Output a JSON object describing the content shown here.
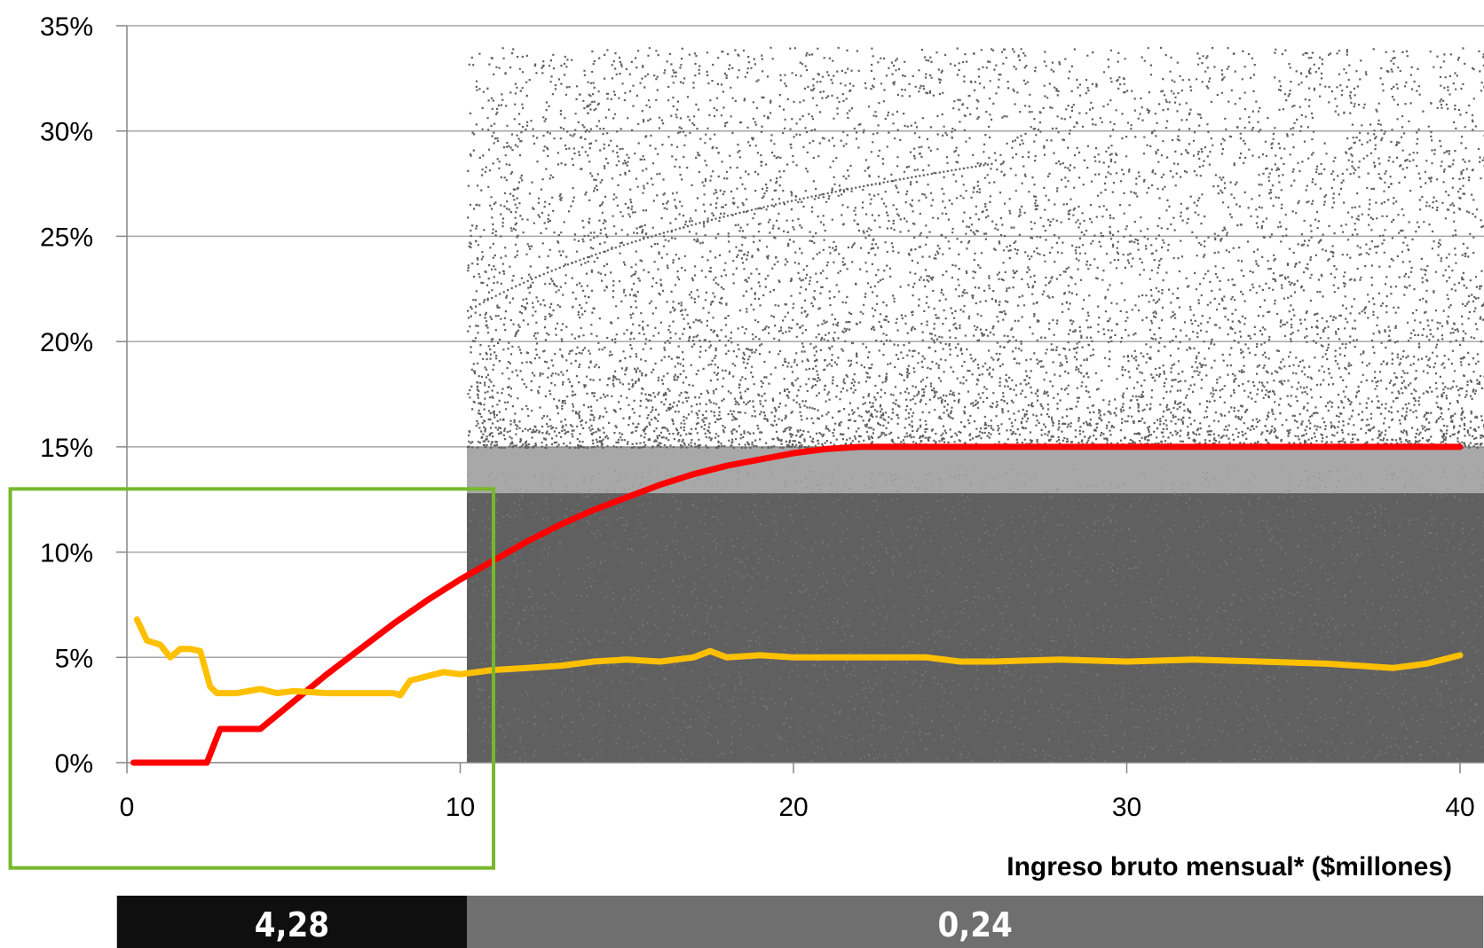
{
  "chart_data": {
    "type": "scatter",
    "title": "",
    "xlabel": "Ingreso bruto mensual* ($millones)",
    "ylabel": "",
    "xlim": [
      0,
      40
    ],
    "ylim": [
      0,
      35
    ],
    "x_ticks": [
      0,
      10,
      20,
      30,
      40
    ],
    "x_tick_labels": [
      "0",
      "10",
      "20",
      "30",
      "40"
    ],
    "y_ticks": [
      0,
      5,
      10,
      15,
      20,
      25,
      30,
      35
    ],
    "y_tick_labels": [
      "0%",
      "5%",
      "10%",
      "15%",
      "20%",
      "25%",
      "30%",
      "35%"
    ],
    "grid": "horizontal",
    "scatter_x_range": [
      10.2,
      40
    ],
    "scatter_color": "#606060",
    "series": [
      {
        "color": "#ff0000",
        "x": [
          0.2,
          2.4,
          2.6,
          2.8,
          3.0,
          4.0,
          5.0,
          6.0,
          7.0,
          8.0,
          9.0,
          10.0,
          11.0,
          12.0,
          13.0,
          14.0,
          15.0,
          16.0,
          17.0,
          18.0,
          19.0,
          20.0,
          21.0,
          22.0,
          23.0,
          24.0,
          25.0,
          30.0,
          35.0,
          40.0
        ],
        "values": [
          0,
          0,
          0.8,
          1.6,
          1.6,
          1.6,
          2.9,
          4.2,
          5.4,
          6.6,
          7.7,
          8.7,
          9.6,
          10.5,
          11.3,
          12.0,
          12.6,
          13.2,
          13.7,
          14.1,
          14.4,
          14.7,
          14.9,
          15.0,
          15.0,
          15.0,
          15.0,
          15.0,
          15.0,
          15.0
        ]
      },
      {
        "color": "#ffc000",
        "x": [
          0.3,
          0.6,
          1.0,
          1.3,
          1.6,
          1.9,
          2.2,
          2.5,
          2.7,
          2.9,
          3.3,
          4.0,
          4.5,
          5.0,
          6.0,
          7.0,
          8.0,
          8.2,
          8.5,
          9.0,
          9.5,
          10.0,
          10.5,
          11.0,
          12.0,
          13.0,
          14.0,
          15.0,
          16.0,
          17.0,
          17.5,
          18.0,
          19.0,
          20.0,
          22.0,
          24.0,
          25.0,
          26.0,
          28.0,
          30.0,
          32.0,
          34.0,
          36.0,
          38.0,
          39.0,
          40.0
        ],
        "values": [
          6.8,
          5.8,
          5.6,
          5.0,
          5.4,
          5.4,
          5.3,
          3.6,
          3.3,
          3.3,
          3.3,
          3.5,
          3.3,
          3.4,
          3.3,
          3.3,
          3.3,
          3.2,
          3.9,
          4.1,
          4.3,
          4.2,
          4.3,
          4.4,
          4.5,
          4.6,
          4.8,
          4.9,
          4.8,
          5.0,
          5.3,
          5.0,
          5.1,
          5.0,
          5.0,
          5.0,
          4.8,
          4.8,
          4.9,
          4.8,
          4.9,
          4.8,
          4.7,
          4.5,
          4.7,
          5.1
        ]
      }
    ],
    "highlight_box": {
      "x_range": [
        -3.5,
        11
      ],
      "y_range": [
        -5,
        13
      ],
      "color": "#76b82a"
    },
    "bottom_bars": [
      {
        "x_range": [
          -0.3,
          10.2
        ],
        "label": "4,28",
        "color": "#0f0f0f"
      },
      {
        "x_range": [
          10.2,
          40.7
        ],
        "label": "0,24",
        "color": "#6f6f6f"
      }
    ]
  }
}
